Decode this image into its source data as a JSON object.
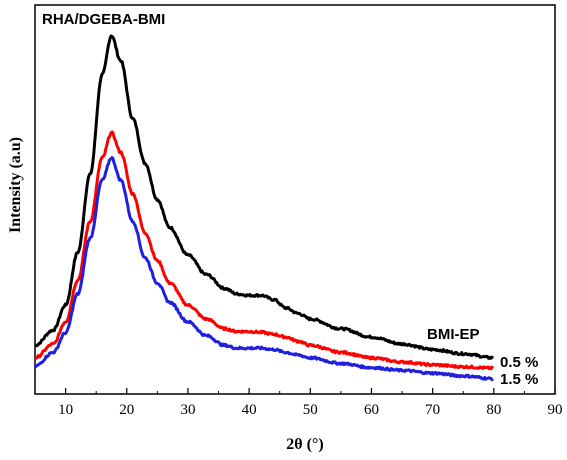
{
  "chart_data": {
    "type": "line",
    "title": "RHA/DGEBA-BMI",
    "xlabel": "2θ (°)",
    "ylabel": "Intensity (a.u)",
    "xlim": [
      5,
      90
    ],
    "xticks": [
      10,
      20,
      30,
      40,
      50,
      60,
      70,
      80,
      90
    ],
    "y_ticks_shown": false,
    "grid": false,
    "legend": "none",
    "series": [
      {
        "name": "BMI-EP",
        "color": "#000000",
        "x": [
          5,
          8,
          10,
          12,
          14,
          16,
          17.5,
          19,
          21,
          23,
          25,
          27,
          30,
          33,
          36,
          38,
          40,
          42,
          44,
          46,
          48,
          50,
          55,
          60,
          65,
          70,
          75,
          80
        ],
        "y": [
          0.175,
          0.23,
          0.32,
          0.51,
          0.79,
          1.15,
          1.29,
          1.2,
          0.99,
          0.83,
          0.7,
          0.6,
          0.5,
          0.43,
          0.38,
          0.36,
          0.355,
          0.355,
          0.34,
          0.31,
          0.29,
          0.27,
          0.235,
          0.205,
          0.18,
          0.16,
          0.145,
          0.13
        ]
      },
      {
        "name": "0.5 %",
        "color": "#ff0000",
        "x": [
          5,
          8,
          10,
          12,
          14,
          16,
          17.5,
          19,
          21,
          23,
          25,
          27,
          30,
          33,
          36,
          38,
          40,
          42,
          44,
          46,
          48,
          50,
          55,
          60,
          65,
          70,
          75,
          80
        ],
        "y": [
          0.13,
          0.18,
          0.26,
          0.41,
          0.62,
          0.85,
          0.94,
          0.87,
          0.72,
          0.58,
          0.48,
          0.4,
          0.32,
          0.27,
          0.235,
          0.225,
          0.225,
          0.222,
          0.215,
          0.205,
          0.19,
          0.175,
          0.15,
          0.13,
          0.115,
          0.105,
          0.098,
          0.093
        ]
      },
      {
        "name": "1.5 %",
        "color": "#1f1fe0",
        "x": [
          5,
          8,
          10,
          12,
          14,
          16,
          17.5,
          19,
          21,
          23,
          25,
          27,
          30,
          33,
          36,
          38,
          40,
          42,
          44,
          46,
          48,
          50,
          55,
          60,
          65,
          70,
          75,
          80
        ],
        "y": [
          0.1,
          0.15,
          0.22,
          0.36,
          0.56,
          0.77,
          0.85,
          0.77,
          0.62,
          0.49,
          0.4,
          0.33,
          0.26,
          0.21,
          0.175,
          0.165,
          0.165,
          0.165,
          0.16,
          0.15,
          0.14,
          0.13,
          0.11,
          0.095,
          0.085,
          0.075,
          0.065,
          0.055
        ]
      }
    ]
  }
}
